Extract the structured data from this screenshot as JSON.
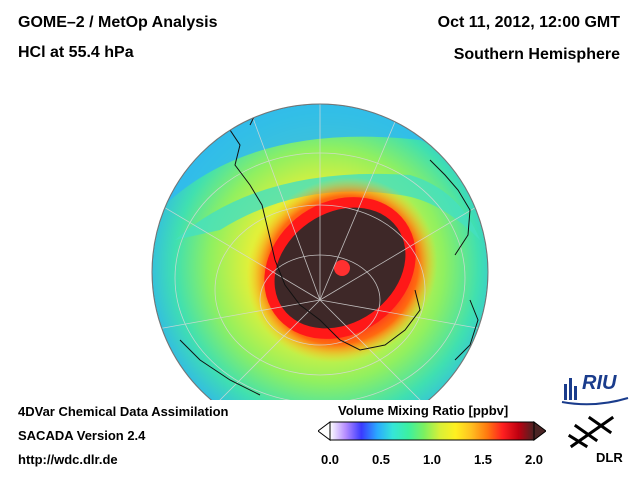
{
  "header": {
    "title": "GOME–2 / MetOp Analysis",
    "subtitle": "HCl at 55.4 hPa",
    "datetime": "Oct 11, 2012, 12:00 GMT",
    "region": "Southern Hemisphere"
  },
  "footer": {
    "line1": "4DVar Chemical Data Assimilation",
    "line2": "SACADA Version 2.4",
    "line3": "http://wdc.dlr.de"
  },
  "colorbar": {
    "title": "Volume Mixing Ratio [ppbv]",
    "ticks": [
      "0.0",
      "0.5",
      "1.0",
      "1.5",
      "2.0"
    ],
    "min": 0.0,
    "max": 2.0,
    "colors": [
      "#ffffff",
      "#b58cff",
      "#3a3aff",
      "#2aa8ff",
      "#35e6d8",
      "#3cf0a0",
      "#7cf060",
      "#d8f038",
      "#fff020",
      "#ffc020",
      "#ff7a10",
      "#ff2020",
      "#c00010",
      "#4a2424"
    ]
  },
  "map": {
    "projection": "orthographic, south polar",
    "field": "HCl volume mixing ratio"
  },
  "logos": {
    "riu": "RIU",
    "dlr": "DLR"
  }
}
